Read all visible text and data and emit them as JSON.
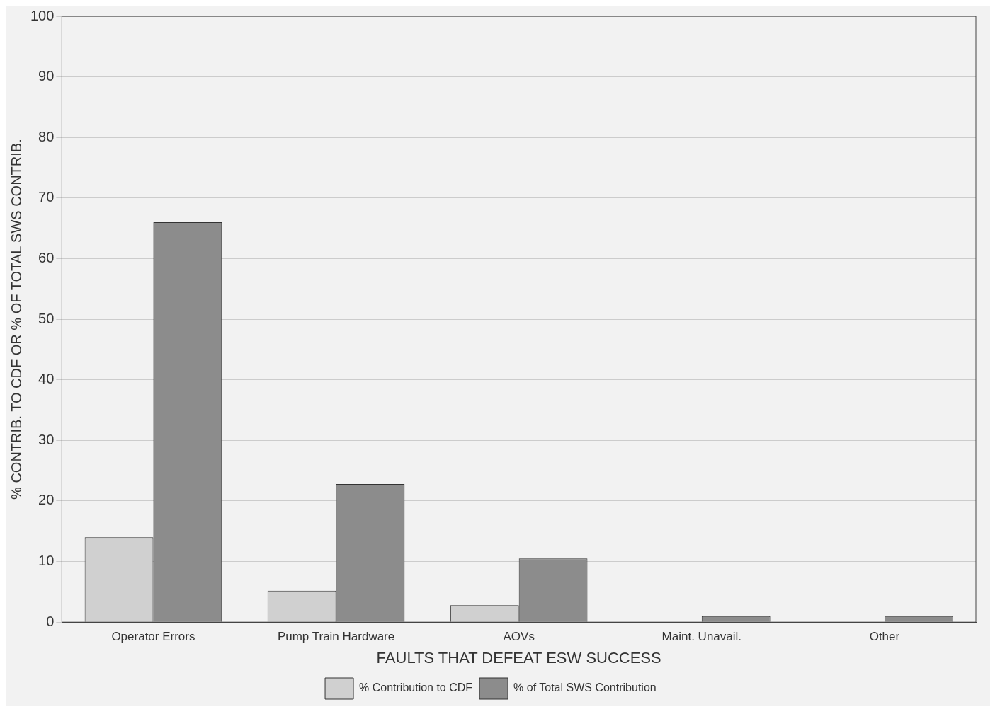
{
  "chart_data": {
    "type": "bar",
    "xlabel": "FAULTS THAT DEFEAT ESW SUCCESS",
    "ylabel": "% CONTRIB. TO CDF OR % OF TOTAL SWS CONTRIB.",
    "categories": [
      "Operator Errors",
      "Pump Train Hardware",
      "AOVs",
      "Maint. Unavail.",
      "Other"
    ],
    "series": [
      {
        "name": "% Contribution to CDF",
        "color": "#d0d0d0",
        "values": [
          14,
          5.2,
          2.8,
          null,
          null
        ]
      },
      {
        "name": "% of Total SWS Contribution",
        "color": "#8c8c8c",
        "values": [
          66,
          22.8,
          10.5,
          1,
          1
        ]
      }
    ],
    "ylim": [
      0,
      100
    ],
    "yticks": [
      0,
      10,
      20,
      30,
      40,
      50,
      60,
      70,
      80,
      90,
      100
    ],
    "grid": "y",
    "legend": "bottom"
  }
}
